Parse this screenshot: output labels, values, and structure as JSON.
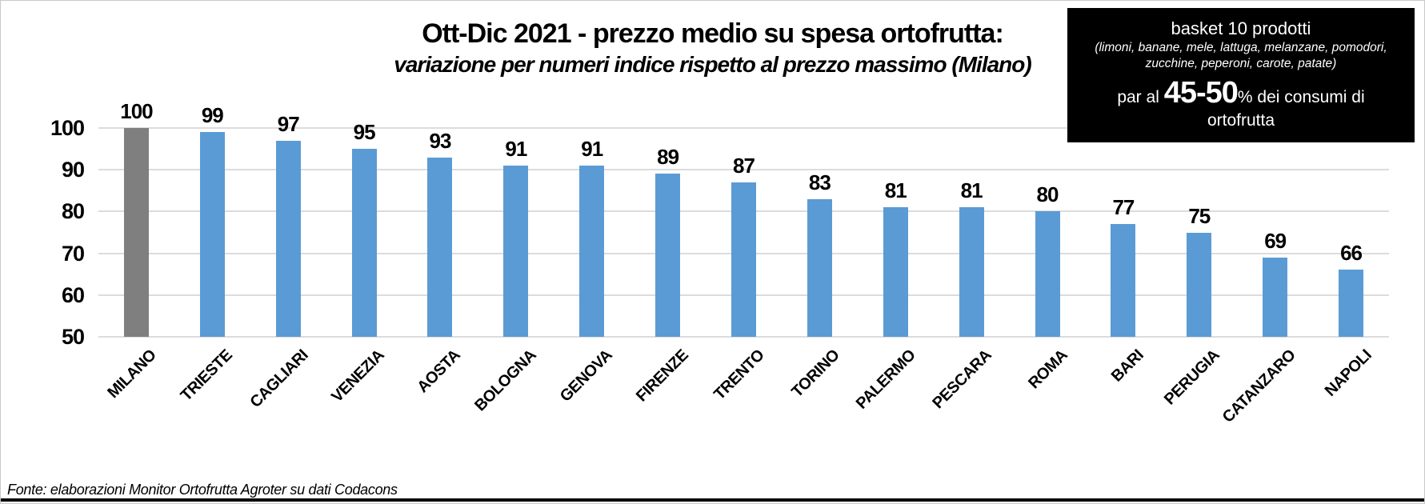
{
  "header": {
    "title": "Ott-Dic 2021 - prezzo medio su spesa ortofrutta:",
    "subtitle": "variazione per numeri indice rispetto al prezzo massimo (Milano)"
  },
  "info_box": {
    "heading": "basket 10 prodotti",
    "products": "(limoni, banane, mele, lattuga, melanzane, pomodori, zucchine, peperoni, carote, patate)",
    "share_prefix": "par al ",
    "share_value": "45-50",
    "share_suffix": "% dei consumi di",
    "share_line2": "ortofrutta"
  },
  "footer": {
    "source": "Fonte: elaborazioni Monitor Ortofrutta Agroter su dati Codacons"
  },
  "chart_data": {
    "type": "bar",
    "title": "Ott-Dic 2021 - prezzo medio su spesa ortofrutta:",
    "subtitle": "variazione per numeri indice rispetto al prezzo massimo (Milano)",
    "categories": [
      "MILANO",
      "TRIESTE",
      "CAGLIARI",
      "VENEZIA",
      "AOSTA",
      "BOLOGNA",
      "GENOVA",
      "FIRENZE",
      "TRENTO",
      "TORINO",
      "PALERMO",
      "PESCARA",
      "ROMA",
      "BARI",
      "PERUGIA",
      "CATANZARO",
      "NAPOLI"
    ],
    "values": [
      100,
      99,
      97,
      95,
      93,
      91,
      91,
      89,
      87,
      83,
      81,
      81,
      80,
      77,
      75,
      69,
      66
    ],
    "highlight_category": "MILANO",
    "value_labels": true,
    "xlabel": "",
    "ylabel": "",
    "ylim": [
      50,
      100
    ],
    "yticks": [
      50,
      60,
      70,
      80,
      90,
      100
    ],
    "grid": true,
    "legend": false,
    "colors": {
      "bar": "#5B9BD5",
      "highlight": "#7F7F7F",
      "gridline": "#DCDCDC",
      "text": "#000000",
      "info_box_bg": "#000000",
      "info_box_text": "#FFFFFF"
    }
  }
}
